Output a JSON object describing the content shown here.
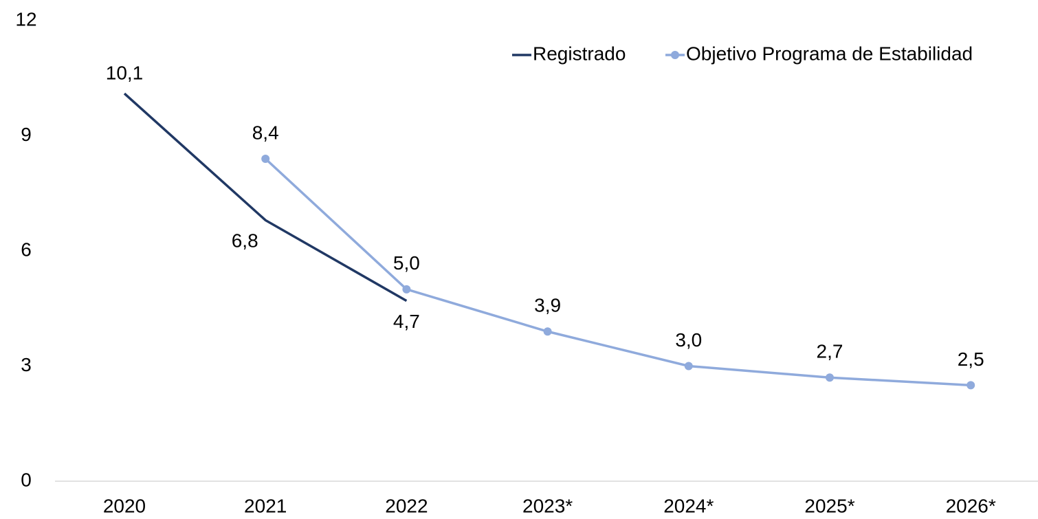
{
  "chart_data": {
    "type": "line",
    "categories": [
      "2020",
      "2021",
      "2022",
      "2023*",
      "2024*",
      "2025*",
      "2026*"
    ],
    "series": [
      {
        "name": "Registrado",
        "color": "#203864",
        "marker": false,
        "values": [
          10.1,
          6.8,
          4.7,
          null,
          null,
          null,
          null
        ],
        "value_labels": [
          "10,1",
          "6,8",
          "4,7",
          null,
          null,
          null,
          null
        ]
      },
      {
        "name": "Objetivo Programa de Estabilidad",
        "color": "#8faadc",
        "marker": true,
        "values": [
          null,
          8.4,
          5.0,
          3.9,
          3.0,
          2.7,
          2.5
        ],
        "value_labels": [
          null,
          "8,4",
          "5,0",
          "3,9",
          "3,0",
          "2,7",
          "2,5"
        ]
      }
    ],
    "ylim": [
      0,
      12
    ],
    "yticks": [
      0,
      3,
      6,
      9,
      12
    ],
    "grid": false,
    "legend": "top-right"
  }
}
